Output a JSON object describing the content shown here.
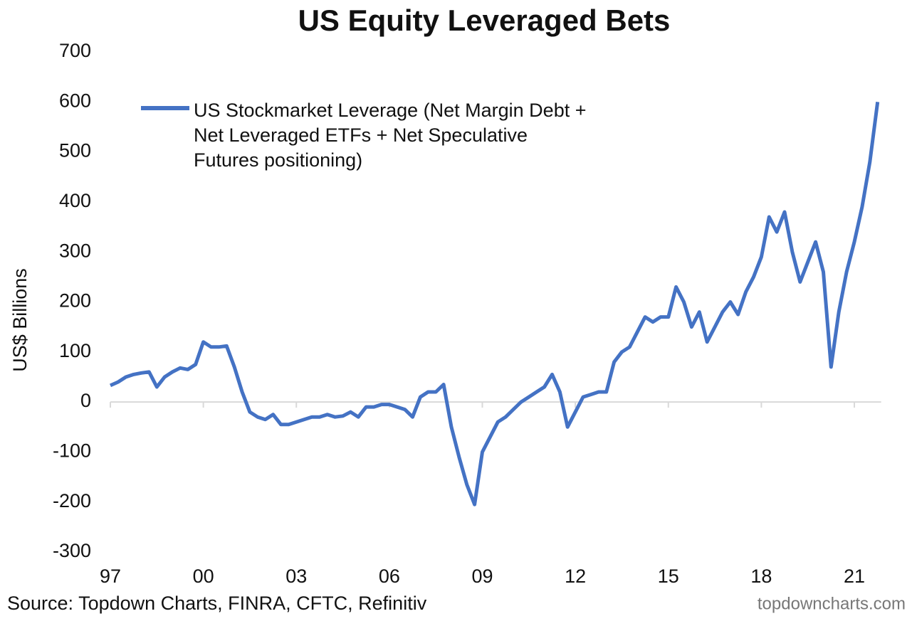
{
  "chart_data": {
    "type": "line",
    "title": "US Equity Leveraged Bets",
    "y_label": "US$ Billions",
    "source": "Source: Topdown Charts, FINRA, CFTC, Refinitiv",
    "watermark": "topdowncharts.com",
    "categories": [
      "97",
      null,
      null,
      null,
      null,
      null,
      null,
      null,
      null,
      null,
      null,
      null,
      "00",
      null,
      null,
      null,
      null,
      null,
      null,
      null,
      null,
      null,
      null,
      null,
      "03",
      null,
      null,
      null,
      null,
      null,
      null,
      null,
      null,
      null,
      null,
      null,
      "06",
      null,
      null,
      null,
      null,
      null,
      null,
      null,
      null,
      null,
      null,
      null,
      "09",
      null,
      null,
      null,
      null,
      null,
      null,
      null,
      null,
      null,
      null,
      null,
      "12",
      null,
      null,
      null,
      null,
      null,
      null,
      null,
      null,
      null,
      null,
      null,
      "15",
      null,
      null,
      null,
      null,
      null,
      null,
      null,
      null,
      null,
      null,
      null,
      "18",
      null,
      null,
      null,
      null,
      null,
      null,
      null,
      null,
      null,
      null,
      null,
      "21",
      null,
      null,
      null
    ],
    "series": [
      {
        "name": "US Stockmarket Leverage (Net Margin Debt + Net Leveraged ETFs + Net Speculative Futures positioning)",
        "color": "#4472c4",
        "values": [
          33,
          40,
          50,
          55,
          58,
          60,
          30,
          50,
          60,
          68,
          65,
          75,
          120,
          110,
          110,
          112,
          70,
          20,
          -20,
          -30,
          -35,
          -25,
          -45,
          -45,
          -40,
          -35,
          -30,
          -30,
          -25,
          -30,
          -28,
          -20,
          -30,
          -10,
          -10,
          -5,
          -5,
          -10,
          -15,
          -30,
          10,
          20,
          20,
          35,
          -50,
          -110,
          -165,
          -205,
          -100,
          -70,
          -40,
          -30,
          -15,
          0,
          10,
          20,
          30,
          55,
          20,
          -50,
          -20,
          10,
          15,
          20,
          20,
          80,
          100,
          110,
          140,
          170,
          160,
          170,
          170,
          230,
          200,
          150,
          180,
          120,
          150,
          180,
          200,
          175,
          220,
          250,
          290,
          370,
          340,
          380,
          300,
          240,
          280,
          320,
          260,
          70,
          180,
          260,
          320,
          390,
          480,
          600
        ]
      }
    ],
    "ylim": [
      -300,
      700
    ],
    "yticks": [
      -300,
      -200,
      -100,
      0,
      100,
      200,
      300,
      400,
      500,
      600,
      700
    ]
  }
}
